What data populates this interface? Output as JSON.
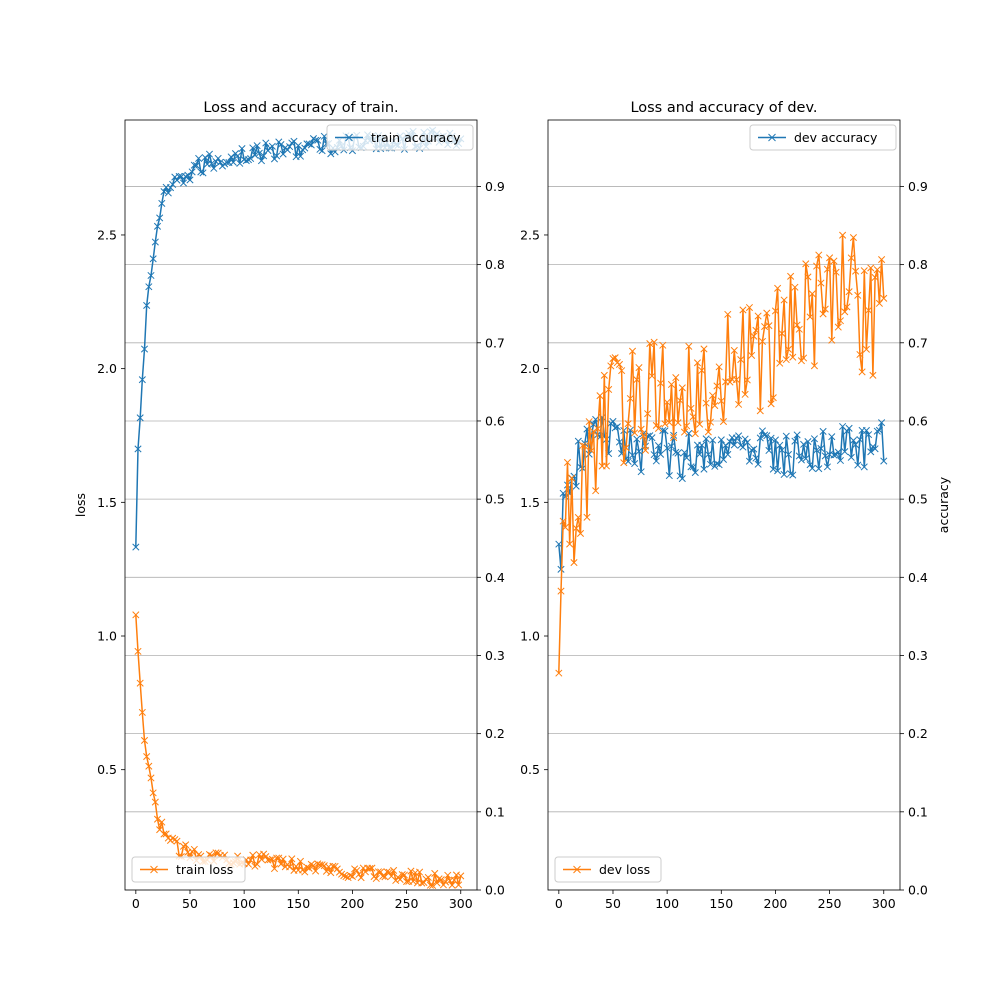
{
  "chart_data": [
    {
      "type": "line",
      "title": "Loss and accuracy of train.",
      "xlabel": "",
      "ylabel_left": "loss",
      "ylabel_right": "",
      "xlim": [
        -10,
        315
      ],
      "xticks": [
        0,
        50,
        100,
        150,
        200,
        250,
        300
      ],
      "ylim_left": [
        0.05,
        2.93
      ],
      "yticks_left": [
        0.5,
        1.0,
        1.5,
        2.0,
        2.5
      ],
      "ylim_right": [
        0.0,
        0.985
      ],
      "yticks_right": [
        0.0,
        0.1,
        0.2,
        0.3,
        0.4,
        0.5,
        0.6,
        0.7,
        0.8,
        0.9
      ],
      "grid": "right-axis horizontal",
      "series": [
        {
          "name": "train accuracy",
          "axis": "right",
          "color": "#1f77b4",
          "marker": "x",
          "points": [
            [
              0,
              0.435
            ],
            [
              2,
              0.553
            ],
            [
              4,
              0.61
            ],
            [
              6,
              0.652
            ],
            [
              8,
              0.7
            ],
            [
              10,
              0.738
            ],
            [
              12,
              0.77
            ],
            [
              14,
              0.79
            ],
            [
              16,
              0.81
            ],
            [
              18,
              0.83
            ],
            [
              20,
              0.85
            ],
            [
              22,
              0.865
            ],
            [
              25,
              0.878
            ],
            [
              28,
              0.889
            ],
            [
              31,
              0.893
            ],
            [
              35,
              0.9
            ],
            [
              40,
              0.905
            ],
            [
              45,
              0.912
            ],
            [
              50,
              0.918
            ],
            [
              55,
              0.922
            ],
            [
              60,
              0.926
            ],
            [
              65,
              0.929
            ],
            [
              70,
              0.931
            ],
            [
              75,
              0.933
            ],
            [
              80,
              0.935
            ],
            [
              90,
              0.938
            ],
            [
              100,
              0.94
            ],
            [
              110,
              0.942
            ],
            [
              120,
              0.944
            ],
            [
              130,
              0.946
            ],
            [
              140,
              0.948
            ],
            [
              150,
              0.95
            ],
            [
              160,
              0.951
            ],
            [
              170,
              0.952
            ],
            [
              180,
              0.953
            ],
            [
              190,
              0.954
            ],
            [
              200,
              0.955
            ],
            [
              210,
              0.955
            ],
            [
              220,
              0.956
            ],
            [
              230,
              0.957
            ],
            [
              240,
              0.958
            ],
            [
              250,
              0.959
            ],
            [
              260,
              0.96
            ],
            [
              270,
              0.961
            ],
            [
              280,
              0.961
            ],
            [
              290,
              0.962
            ],
            [
              300,
              0.962
            ]
          ],
          "jitter": 0.012
        },
        {
          "name": "train loss",
          "axis": "left",
          "color": "#ff7f0e",
          "marker": "x",
          "points": [
            [
              0,
              1.07
            ],
            [
              2,
              0.92
            ],
            [
              4,
              0.8
            ],
            [
              6,
              0.72
            ],
            [
              8,
              0.61
            ],
            [
              10,
              0.55
            ],
            [
              12,
              0.5
            ],
            [
              14,
              0.45
            ],
            [
              16,
              0.41
            ],
            [
              18,
              0.36
            ],
            [
              20,
              0.32
            ],
            [
              23,
              0.29
            ],
            [
              26,
              0.27
            ],
            [
              30,
              0.25
            ],
            [
              35,
              0.22
            ],
            [
              40,
              0.2
            ],
            [
              50,
              0.19
            ],
            [
              60,
              0.18
            ],
            [
              70,
              0.18
            ],
            [
              80,
              0.17
            ],
            [
              90,
              0.17
            ],
            [
              100,
              0.17
            ],
            [
              110,
              0.16
            ],
            [
              120,
              0.16
            ],
            [
              130,
              0.15
            ],
            [
              140,
              0.15
            ],
            [
              150,
              0.14
            ],
            [
              160,
              0.14
            ],
            [
              170,
              0.13
            ],
            [
              180,
              0.13
            ],
            [
              190,
              0.12
            ],
            [
              200,
              0.12
            ],
            [
              210,
              0.12
            ],
            [
              220,
              0.11
            ],
            [
              230,
              0.11
            ],
            [
              240,
              0.1
            ],
            [
              250,
              0.1
            ],
            [
              260,
              0.1
            ],
            [
              270,
              0.09
            ],
            [
              280,
              0.09
            ],
            [
              290,
              0.09
            ],
            [
              300,
              0.08
            ]
          ],
          "jitter": 0.025
        }
      ],
      "legend_right": {
        "label": "train accuracy",
        "placement": "upper right"
      },
      "legend_left": {
        "label": "train loss",
        "placement": "lower left"
      }
    },
    {
      "type": "line",
      "title": "Loss and accuracy of dev.",
      "xlabel": "",
      "ylabel_left": "",
      "ylabel_right": "accuracy",
      "xlim": [
        -10,
        315
      ],
      "xticks": [
        0,
        50,
        100,
        150,
        200,
        250,
        300
      ],
      "ylim_left": [
        0.05,
        2.93
      ],
      "yticks_left": [
        0.5,
        1.0,
        1.5,
        2.0,
        2.5
      ],
      "ylim_right": [
        0.0,
        0.985
      ],
      "yticks_right": [
        0.0,
        0.1,
        0.2,
        0.3,
        0.4,
        0.5,
        0.6,
        0.7,
        0.8,
        0.9
      ],
      "grid": "right-axis horizontal",
      "series": [
        {
          "name": "dev accuracy",
          "axis": "right",
          "color": "#1f77b4",
          "marker": "x",
          "points": [
            [
              0,
              0.47
            ],
            [
              2,
              0.4
            ],
            [
              4,
              0.48
            ],
            [
              6,
              0.5
            ],
            [
              8,
              0.51
            ],
            [
              10,
              0.5
            ],
            [
              12,
              0.52
            ],
            [
              14,
              0.53
            ],
            [
              16,
              0.54
            ],
            [
              18,
              0.55
            ],
            [
              20,
              0.56
            ],
            [
              25,
              0.57
            ],
            [
              30,
              0.575
            ],
            [
              35,
              0.58
            ],
            [
              40,
              0.58
            ],
            [
              50,
              0.575
            ],
            [
              60,
              0.57
            ],
            [
              70,
              0.565
            ],
            [
              80,
              0.56
            ],
            [
              90,
              0.56
            ],
            [
              100,
              0.56
            ],
            [
              110,
              0.555
            ],
            [
              120,
              0.555
            ],
            [
              130,
              0.56
            ],
            [
              140,
              0.565
            ],
            [
              150,
              0.565
            ],
            [
              160,
              0.565
            ],
            [
              170,
              0.565
            ],
            [
              180,
              0.56
            ],
            [
              190,
              0.56
            ],
            [
              200,
              0.56
            ],
            [
              210,
              0.56
            ],
            [
              220,
              0.56
            ],
            [
              230,
              0.56
            ],
            [
              240,
              0.565
            ],
            [
              250,
              0.565
            ],
            [
              260,
              0.565
            ],
            [
              270,
              0.565
            ],
            [
              280,
              0.57
            ],
            [
              290,
              0.57
            ],
            [
              300,
              0.57
            ]
          ],
          "jitter": 0.03
        },
        {
          "name": "dev loss",
          "axis": "left",
          "color": "#ff7f0e",
          "marker": "x",
          "points": [
            [
              0,
              1.05
            ],
            [
              2,
              1.1
            ],
            [
              4,
              1.35
            ],
            [
              6,
              1.45
            ],
            [
              8,
              1.45
            ],
            [
              10,
              1.48
            ],
            [
              12,
              1.46
            ],
            [
              14,
              1.48
            ],
            [
              16,
              1.5
            ],
            [
              18,
              1.52
            ],
            [
              20,
              1.55
            ],
            [
              25,
              1.6
            ],
            [
              30,
              1.7
            ],
            [
              35,
              1.75
            ],
            [
              40,
              1.8
            ],
            [
              50,
              1.85
            ],
            [
              60,
              1.85
            ],
            [
              70,
              1.88
            ],
            [
              80,
              1.9
            ],
            [
              90,
              1.9
            ],
            [
              100,
              1.92
            ],
            [
              110,
              1.92
            ],
            [
              120,
              1.95
            ],
            [
              130,
              1.95
            ],
            [
              140,
              1.97
            ],
            [
              150,
              1.98
            ],
            [
              160,
              2.0
            ],
            [
              170,
              2.0
            ],
            [
              180,
              2.02
            ],
            [
              190,
              2.05
            ],
            [
              200,
              2.1
            ],
            [
              210,
              2.15
            ],
            [
              220,
              2.18
            ],
            [
              230,
              2.2
            ],
            [
              240,
              2.22
            ],
            [
              250,
              2.3
            ],
            [
              260,
              2.35
            ],
            [
              270,
              2.38
            ],
            [
              280,
              2.2
            ],
            [
              290,
              2.15
            ],
            [
              300,
              2.2
            ]
          ],
          "jitter": 0.22
        }
      ],
      "legend_right": {
        "label": "dev accuracy",
        "placement": "upper right"
      },
      "legend_left": {
        "label": "dev loss",
        "placement": "lower left"
      }
    }
  ]
}
